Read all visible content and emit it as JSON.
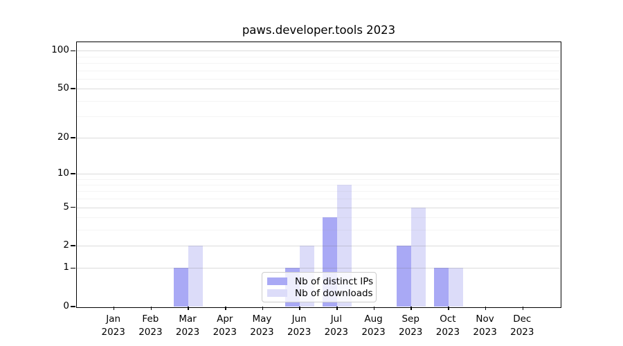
{
  "title": "paws.developer.tools 2023",
  "legend": [
    {
      "label": "Nb of distinct IPs",
      "color": "#a9a9f5"
    },
    {
      "label": "Nb of downloads",
      "color": "#dcdcf9"
    }
  ],
  "chart_data": {
    "type": "bar",
    "title": "paws.developer.tools 2023",
    "categories": [
      {
        "month": "Jan",
        "year": "2023"
      },
      {
        "month": "Feb",
        "year": "2023"
      },
      {
        "month": "Mar",
        "year": "2023"
      },
      {
        "month": "Apr",
        "year": "2023"
      },
      {
        "month": "May",
        "year": "2023"
      },
      {
        "month": "Jun",
        "year": "2023"
      },
      {
        "month": "Jul",
        "year": "2023"
      },
      {
        "month": "Aug",
        "year": "2023"
      },
      {
        "month": "Sep",
        "year": "2023"
      },
      {
        "month": "Oct",
        "year": "2023"
      },
      {
        "month": "Nov",
        "year": "2023"
      },
      {
        "month": "Dec",
        "year": "2023"
      }
    ],
    "series": [
      {
        "name": "Nb of distinct IPs",
        "color": "#a9a9f5",
        "values": [
          0,
          0,
          1,
          0,
          0,
          1,
          4,
          0,
          2,
          1,
          0,
          0
        ]
      },
      {
        "name": "Nb of downloads",
        "color": "#dcdcf9",
        "values": [
          0,
          0,
          2,
          0,
          0,
          2,
          8,
          0,
          5,
          1,
          0,
          0
        ]
      }
    ],
    "xlabel": "",
    "ylabel": "",
    "yscale": "log1p",
    "ylim": [
      0,
      117
    ],
    "yticks": [
      100,
      50,
      20,
      10,
      5,
      2,
      1,
      0
    ],
    "minor_yticks": [
      3,
      4,
      6,
      7,
      8,
      9,
      30,
      40,
      60,
      70,
      80,
      90
    ],
    "grid": "horizontal",
    "legend_position": "bottom-center"
  }
}
